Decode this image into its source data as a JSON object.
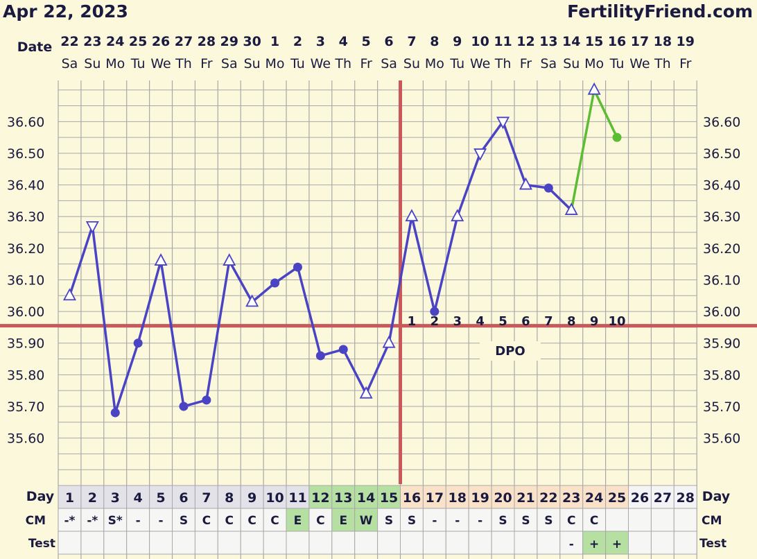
{
  "header": {
    "start_date": "Apr 22, 2023",
    "site": "FertilityFriend.com"
  },
  "labels": {
    "date": "Date",
    "day": "Day",
    "cm": "CM",
    "test": "Test",
    "dpo": "DPO"
  },
  "colors": {
    "background": "#fbf8dc",
    "grid": "#a8a8a8",
    "temp_line": "#4a44c4",
    "temp_line_after": "#5cbc34",
    "coverline": "#c8585a",
    "fertile_cell": "#b6e0a2",
    "luteal_cell": "#f9e2c8",
    "follicular_cell": "#e2e2e8"
  },
  "chart_data": {
    "type": "line",
    "ylim": [
      35.45,
      36.73
    ],
    "y_ticks": [
      "36.60",
      "36.50",
      "36.40",
      "36.30",
      "36.20",
      "36.10",
      "36.00",
      "35.90",
      "35.80",
      "35.70",
      "35.60"
    ],
    "dates": [
      "22",
      "23",
      "24",
      "25",
      "26",
      "27",
      "28",
      "29",
      "30",
      "1",
      "2",
      "3",
      "4",
      "5",
      "6",
      "7",
      "8",
      "9",
      "10",
      "11",
      "12",
      "13",
      "14",
      "15",
      "16",
      "17",
      "18",
      "19"
    ],
    "weekdays": [
      "Sa",
      "Su",
      "Mo",
      "Tu",
      "We",
      "Th",
      "Fr",
      "Sa",
      "Su",
      "Mo",
      "Tu",
      "We",
      "Th",
      "Fr",
      "Sa",
      "Su",
      "Mo",
      "Tu",
      "We",
      "Th",
      "Fr",
      "Sa",
      "Su",
      "Mo",
      "Tu",
      "We",
      "Th",
      "Fr"
    ],
    "cycle_days": [
      "1",
      "2",
      "3",
      "4",
      "5",
      "6",
      "7",
      "8",
      "9",
      "10",
      "11",
      "12",
      "13",
      "14",
      "15",
      "16",
      "17",
      "18",
      "19",
      "20",
      "21",
      "22",
      "23",
      "24",
      "25",
      "26",
      "27",
      "28"
    ],
    "series": [
      {
        "values": [
          36.05,
          36.27,
          35.68,
          35.9,
          36.16,
          35.7,
          35.72,
          36.16,
          36.03,
          36.09,
          36.14,
          35.86,
          35.88,
          35.74,
          35.9,
          36.3,
          36.0,
          36.3,
          36.5,
          36.6,
          36.4,
          36.39,
          36.32,
          36.7,
          36.55,
          null,
          null,
          null
        ],
        "markers": [
          "tri-up",
          "tri-down",
          "dot",
          "dot",
          "tri-up",
          "dot",
          "dot",
          "tri-up",
          "tri-up",
          "dot",
          "dot",
          "dot",
          "dot",
          "tri-up",
          "tri-up",
          "tri-up",
          "dot",
          "tri-up",
          "tri-down",
          "tri-down",
          "tri-up",
          "dot",
          "tri-up",
          "tri-up",
          "dot",
          null,
          null,
          null
        ]
      }
    ],
    "green_segment_from_day": 23,
    "coverline": 35.955,
    "ovulation_day": 15,
    "dpo_numbers": [
      "1",
      "2",
      "3",
      "4",
      "5",
      "6",
      "7",
      "8",
      "9",
      "10"
    ],
    "dpo_start_day": 16,
    "cm": [
      "-*",
      "-*",
      "S*",
      "-",
      "-",
      "S",
      "C",
      "C",
      "C",
      "C",
      "E",
      "C",
      "E",
      "W",
      "S",
      "S",
      "-",
      "-",
      "-",
      "S",
      "S",
      "S",
      "C",
      "C",
      "",
      "",
      "",
      ""
    ],
    "test": [
      "",
      "",
      "",
      "",
      "",
      "",
      "",
      "",
      "",
      "",
      "",
      "",
      "",
      "",
      "",
      "",
      "",
      "",
      "",
      "",
      "",
      "",
      "-",
      "+",
      "+",
      "",
      "",
      ""
    ],
    "fertile_days": [
      12,
      13,
      14,
      15
    ],
    "luteal_days": [
      16,
      17,
      18,
      19,
      20,
      21,
      22,
      23,
      24,
      25
    ],
    "cm_highlight_days": [
      11,
      13,
      14
    ],
    "test_highlight_days": [
      24,
      25
    ]
  }
}
